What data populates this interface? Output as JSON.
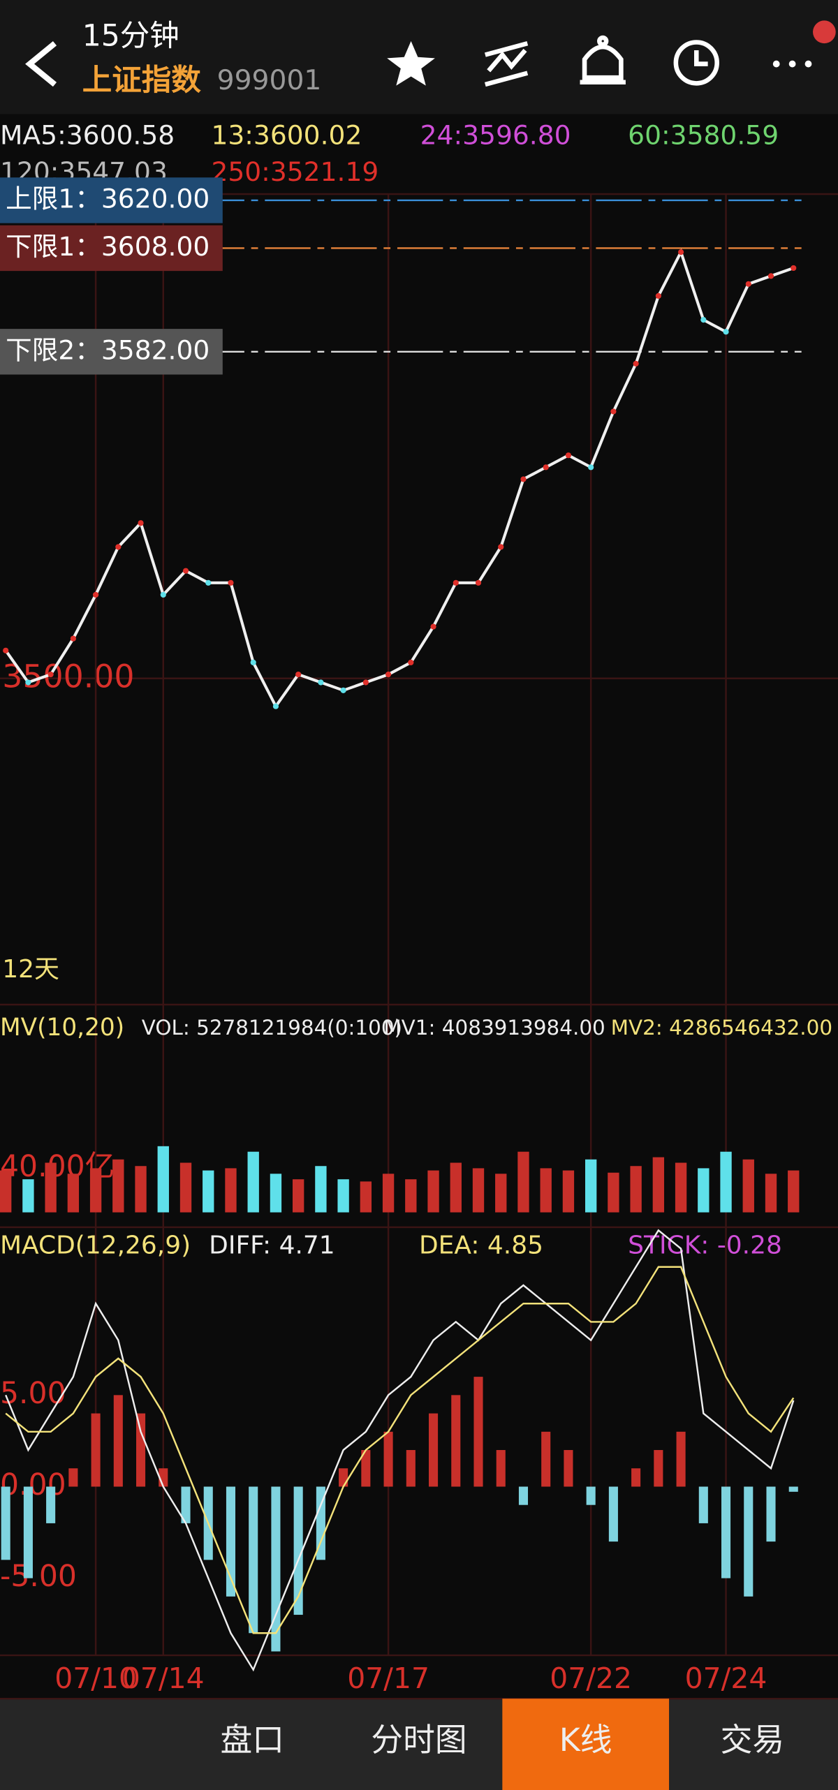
{
  "header": {
    "period": "15分钟",
    "name": "上证指数",
    "code": "999001"
  },
  "ma_labels": [
    {
      "text": "MA5:3600.58",
      "color": "#eeeeee"
    },
    {
      "text": "13:3600.02",
      "color": "#f3e27a"
    },
    {
      "text": "24:3596.80",
      "color": "#d04fd8"
    },
    {
      "text": "60:3580.59",
      "color": "#6fd46f"
    },
    {
      "text": "120:3547.03",
      "color": "#bbbbbb"
    },
    {
      "text": "250:3521.19",
      "color": "#e0302a"
    }
  ],
  "limits": [
    {
      "text": "上限1：3620.00",
      "value": 3620,
      "color": "#3a8fd8",
      "box": "#1f4a73"
    },
    {
      "text": "下限1：3608.00",
      "value": 3608,
      "color": "#e8833a",
      "box": "#6b2222"
    },
    {
      "text": "下限2：3582.00",
      "value": 3582,
      "color": "#dddddd",
      "box": "#555555"
    }
  ],
  "chart_data": [
    {
      "type": "line",
      "color": "#f0f0f0",
      "annotation": "12天",
      "ylim": [
        3421,
        3623
      ],
      "yticks": [
        {
          "value": 3500,
          "label": "3500.00"
        }
      ],
      "values": [
        3507,
        3499,
        3501,
        3510,
        3521,
        3533,
        3539,
        3521,
        3527,
        3524,
        3524,
        3504,
        3493,
        3501,
        3499,
        3497,
        3499,
        3501,
        3504,
        3513,
        3524,
        3524,
        3533,
        3550,
        3553,
        3556,
        3553,
        3567,
        3579,
        3596,
        3607,
        3590,
        3587,
        3599,
        3601,
        3603
      ]
    },
    {
      "type": "bar",
      "title": "MV(10,20)",
      "stats": [
        {
          "text": "VOL: 5278121984(0:100)",
          "color": "#eeeeee"
        },
        {
          "text": "MV1: 4083913984.00",
          "color": "#eeeeee"
        },
        {
          "text": "MV2: 4286546432.00",
          "color": "#f3e27a"
        }
      ],
      "up_color": "#c8302a",
      "down_color": "#5fe0ea",
      "ylim": [
        0,
        147
      ],
      "yticks": [
        {
          "value": 40,
          "label": "40.00亿"
        }
      ],
      "values": [
        38,
        30,
        45,
        35,
        40,
        48,
        42,
        60,
        45,
        38,
        40,
        55,
        35,
        30,
        42,
        30,
        28,
        35,
        30,
        38,
        45,
        40,
        35,
        55,
        40,
        38,
        48,
        36,
        42,
        50,
        45,
        40,
        55,
        48,
        35,
        38
      ]
    },
    {
      "type": "macd",
      "title": "MACD(12,26,9)",
      "stats": [
        {
          "text": "DIFF: 4.71",
          "color": "#eeeeee"
        },
        {
          "text": "DEA: 4.85",
          "color": "#f3e27a"
        },
        {
          "text": "STICK: -0.28",
          "color": "#d04fd8"
        }
      ],
      "ylim": [
        -8.9,
        12.3
      ],
      "yticks": [
        {
          "value": 5,
          "label": "5.00"
        },
        {
          "value": 0,
          "label": "0.00"
        },
        {
          "value": -5,
          "label": "-5.00"
        }
      ],
      "categories": [
        null,
        null,
        null,
        null,
        "07/10",
        null,
        null,
        "07/14",
        null,
        null,
        null,
        null,
        null,
        null,
        null,
        null,
        null,
        "07/17",
        null,
        null,
        null,
        null,
        null,
        null,
        null,
        null,
        "07/22",
        null,
        null,
        null,
        null,
        null,
        "07/24",
        null,
        null,
        null
      ],
      "series": [
        {
          "type": "bar",
          "up_color": "#c8302a",
          "down_color": "#7fd3df",
          "values": [
            -4,
            -5,
            -2,
            1,
            4,
            5,
            4,
            1,
            -2,
            -4,
            -6,
            -8,
            -9,
            -7,
            -4,
            1,
            2,
            3,
            2,
            4,
            5,
            6,
            2,
            -1,
            3,
            2,
            -1,
            -3,
            1,
            2,
            3,
            -2,
            -5,
            -6,
            -3,
            -0.28
          ]
        },
        {
          "type": "line",
          "color": "#eeeeee",
          "values": [
            5,
            2,
            4,
            6,
            10,
            8,
            3,
            0,
            -2,
            -5,
            -8,
            -10,
            -7,
            -4,
            -1,
            2,
            3,
            5,
            6,
            8,
            9,
            8,
            10,
            11,
            10,
            9,
            8,
            10,
            12,
            14,
            13,
            4,
            3,
            2,
            1,
            4.71
          ]
        },
        {
          "type": "line",
          "color": "#f3e27a",
          "values": [
            4,
            3,
            3,
            4,
            6,
            7,
            6,
            4,
            1,
            -2,
            -5,
            -8,
            -8,
            -6,
            -3,
            0,
            2,
            3,
            5,
            6,
            7,
            8,
            9,
            10,
            10,
            10,
            9,
            9,
            10,
            12,
            12,
            9,
            6,
            4,
            3,
            4.85
          ]
        }
      ]
    }
  ],
  "tabs": {
    "items": [
      "盘口",
      "分时图",
      "K线",
      "交易"
    ],
    "active": 2
  }
}
